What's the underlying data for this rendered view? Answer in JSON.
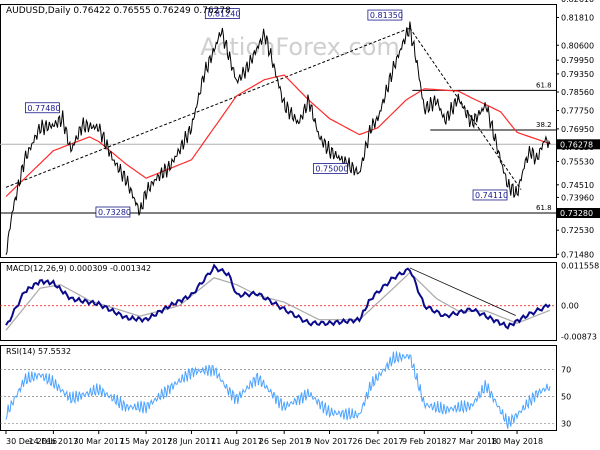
{
  "header": {
    "symbol_line": "AUDUSD,Daily  0.76422 0.76555 0.76249 0.76278",
    "watermark": "ActionForex.com"
  },
  "colors": {
    "price": "#000000",
    "ma": "#ff2a2a",
    "price_label": "#1a1a8c",
    "macd_main": "#0a0a8a",
    "macd_signal": "#a8a8a8",
    "rsi": "#4da3ff",
    "trend": "#000000",
    "level": "#000000",
    "dotted_zero": "#ff0000"
  },
  "chart_data": [
    {
      "id": "price",
      "type": "line",
      "ylim": [
        0.7136,
        0.824
      ],
      "yticks": [
        "0.82610",
        "0.81810",
        "0.80600",
        "0.79950",
        "0.79350",
        "0.78560",
        "0.77750",
        "0.76950",
        "0.76150",
        "0.75530",
        "0.74510",
        "0.73960",
        "0.73280",
        "0.72530",
        "0.71480"
      ],
      "current_price": "0.76278",
      "tag_labels": {
        "a": "0.77480",
        "b": "0.81240",
        "c": "0.81350",
        "d": "0.73280",
        "e": "0.75000",
        "f": "0.74110"
      },
      "fib_labels": [
        "61.8",
        "38.2",
        "61.8"
      ],
      "x_dates": [
        "30 Dec 2016",
        "14 Feb 2017",
        "30 Mar 2017",
        "15 May 2017",
        "28 Jun 2017",
        "11 Aug 2017",
        "26 Sep 2017",
        "9 Nov 2017",
        "26 Dec 2017",
        "9 Feb 2018",
        "27 Mar 2018",
        "10 May 2018"
      ],
      "anchors": [
        [
          "30 Dec 2016",
          0.715
        ],
        [
          "5 Jan 2017",
          0.733
        ],
        [
          "17 Jan 2017",
          0.756
        ],
        [
          "1 Feb 2017",
          0.77
        ],
        [
          "14 Feb 2017",
          0.771
        ],
        [
          "23 Feb 2017",
          0.774
        ],
        [
          "3 Mar 2017",
          0.76
        ],
        [
          "14 Mar 2017",
          0.771
        ],
        [
          "30 Mar 2017",
          0.77
        ],
        [
          "13 Apr 2017",
          0.756
        ],
        [
          "26 Apr 2017",
          0.747
        ],
        [
          "9 May 2017",
          0.733
        ],
        [
          "15 May 2017",
          0.742
        ],
        [
          "25 May 2017",
          0.748
        ],
        [
          "7 Jun 2017",
          0.753
        ],
        [
          "16 Jun 2017",
          0.76
        ],
        [
          "28 Jun 2017",
          0.77
        ],
        [
          "10 Jul 2017",
          0.793
        ],
        [
          "20 Jul 2017",
          0.804
        ],
        [
          "27 Jul 2017",
          0.8124
        ],
        [
          "3 Aug 2017",
          0.802
        ],
        [
          "11 Aug 2017",
          0.79
        ],
        [
          "21 Aug 2017",
          0.796
        ],
        [
          "31 Aug 2017",
          0.805
        ],
        [
          "7 Sep 2017",
          0.811
        ],
        [
          "14 Sep 2017",
          0.8
        ],
        [
          "26 Sep 2017",
          0.78
        ],
        [
          "10 Oct 2017",
          0.772
        ],
        [
          "20 Oct 2017",
          0.782
        ],
        [
          "30 Oct 2017",
          0.766
        ],
        [
          "9 Nov 2017",
          0.76
        ],
        [
          "21 Nov 2017",
          0.756
        ],
        [
          "8 Dec 2017",
          0.75
        ],
        [
          "19 Dec 2017",
          0.77
        ],
        [
          "26 Dec 2017",
          0.774
        ],
        [
          "10 Jan 2018",
          0.796
        ],
        [
          "22 Jan 2018",
          0.81
        ],
        [
          "26 Jan 2018",
          0.8135
        ],
        [
          "2 Feb 2018",
          0.798
        ],
        [
          "9 Feb 2018",
          0.778
        ],
        [
          "21 Feb 2018",
          0.782
        ],
        [
          "1 Mar 2018",
          0.773
        ],
        [
          "14 Mar 2018",
          0.783
        ],
        [
          "27 Mar 2018",
          0.772
        ],
        [
          "10 Apr 2018",
          0.78
        ],
        [
          "24 Apr 2018",
          0.756
        ],
        [
          "1 May 2018",
          0.745
        ],
        [
          "10 May 2018",
          0.7411
        ],
        [
          "18 May 2018",
          0.755
        ],
        [
          "23 May 2018",
          0.76
        ],
        [
          "29 May 2018",
          0.756
        ],
        [
          "6 Jun 2018",
          0.765
        ],
        [
          "11 Jun 2018",
          0.7628
        ]
      ],
      "ma_anchors": [
        [
          "30 Dec 2016",
          0.74
        ],
        [
          "14 Feb 2017",
          0.76
        ],
        [
          "21 Mar 2017",
          0.766
        ],
        [
          "30 Mar 2017",
          0.764
        ],
        [
          "26 Apr 2017",
          0.754
        ],
        [
          "15 May 2017",
          0.748
        ],
        [
          "28 Jun 2017",
          0.756
        ],
        [
          "20 Jul 2017",
          0.77
        ],
        [
          "11 Aug 2017",
          0.784
        ],
        [
          "7 Sep 2017",
          0.791
        ],
        [
          "26 Sep 2017",
          0.793
        ],
        [
          "20 Oct 2017",
          0.782
        ],
        [
          "9 Nov 2017",
          0.774
        ],
        [
          "8 Dec 2017",
          0.767
        ],
        [
          "26 Dec 2017",
          0.77
        ],
        [
          "22 Jan 2018",
          0.782
        ],
        [
          "9 Feb 2018",
          0.787
        ],
        [
          "14 Mar 2018",
          0.786
        ],
        [
          "27 Mar 2018",
          0.783
        ],
        [
          "24 Apr 2018",
          0.777
        ],
        [
          "10 May 2018",
          0.768
        ],
        [
          "11 Jun 2018",
          0.763
        ]
      ]
    },
    {
      "id": "macd",
      "type": "line",
      "title": "MACD(12,26,9) 0.000309 -0.001342",
      "ylim": [
        -0.0098,
        0.0125
      ],
      "yticks": [
        "0.011558",
        "0.00",
        "-0.00873"
      ],
      "series": [
        {
          "anchors": [
            [
              "30 Dec 2016",
              -0.006
            ],
            [
              "17 Jan 2017",
              0.004
            ],
            [
              "1 Feb 2017",
              0.007
            ],
            [
              "14 Feb 2017",
              0.0065
            ],
            [
              "3 Mar 2017",
              0.002
            ],
            [
              "30 Mar 2017",
              0.0005
            ],
            [
              "26 Apr 2017",
              -0.0035
            ],
            [
              "15 May 2017",
              -0.004
            ],
            [
              "7 Jun 2017",
              0.0
            ],
            [
              "28 Jun 2017",
              0.003
            ],
            [
              "20 Jul 2017",
              0.011
            ],
            [
              "3 Aug 2017",
              0.009
            ],
            [
              "11 Aug 2017",
              0.003
            ],
            [
              "31 Aug 2017",
              0.0035
            ],
            [
              "26 Sep 2017",
              -0.001
            ],
            [
              "20 Oct 2017",
              -0.005
            ],
            [
              "9 Nov 2017",
              -0.005
            ],
            [
              "8 Dec 2017",
              -0.004
            ],
            [
              "19 Dec 2017",
              0.002
            ],
            [
              "10 Jan 2018",
              0.008
            ],
            [
              "26 Jan 2018",
              0.0105
            ],
            [
              "9 Feb 2018",
              0.0
            ],
            [
              "1 Mar 2018",
              -0.003
            ],
            [
              "27 Mar 2018",
              -0.001
            ],
            [
              "10 Apr 2018",
              -0.003
            ],
            [
              "1 May 2018",
              -0.006
            ],
            [
              "18 May 2018",
              -0.003
            ],
            [
              "11 Jun 2018",
              0.0003
            ]
          ]
        },
        {
          "anchors": [
            [
              "30 Dec 2016",
              -0.007
            ],
            [
              "1 Feb 2017",
              0.005
            ],
            [
              "21 Feb 2017",
              0.006
            ],
            [
              "21 Mar 2017",
              0.0015
            ],
            [
              "9 May 2017",
              -0.003
            ],
            [
              "16 Jun 2017",
              0.0
            ],
            [
              "20 Jul 2017",
              0.008
            ],
            [
              "11 Aug 2017",
              0.006
            ],
            [
              "31 Aug 2017",
              0.003
            ],
            [
              "26 Sep 2017",
              0.001
            ],
            [
              "30 Oct 2017",
              -0.004
            ],
            [
              "8 Dec 2017",
              -0.004
            ],
            [
              "10 Jan 2018",
              0.005
            ],
            [
              "26 Jan 2018",
              0.0095
            ],
            [
              "21 Feb 2018",
              0.002
            ],
            [
              "14 Mar 2018",
              -0.0015
            ],
            [
              "10 Apr 2018",
              -0.0015
            ],
            [
              "10 May 2018",
              -0.005
            ],
            [
              "11 Jun 2018",
              -0.0013
            ]
          ]
        }
      ]
    },
    {
      "id": "rsi",
      "type": "line",
      "title": "RSI(14) 57.5532",
      "ylim": [
        25,
        88
      ],
      "yticks": [
        "70",
        "50",
        "30"
      ],
      "anchors": [
        [
          "30 Dec 2016",
          36
        ],
        [
          "17 Jan 2017",
          62
        ],
        [
          "1 Feb 2017",
          66
        ],
        [
          "14 Feb 2017",
          60
        ],
        [
          "3 Mar 2017",
          48
        ],
        [
          "30 Mar 2017",
          55
        ],
        [
          "26 Apr 2017",
          42
        ],
        [
          "15 May 2017",
          42
        ],
        [
          "7 Jun 2017",
          56
        ],
        [
          "28 Jun 2017",
          68
        ],
        [
          "20 Jul 2017",
          70
        ],
        [
          "3 Aug 2017",
          54
        ],
        [
          "11 Aug 2017",
          48
        ],
        [
          "31 Aug 2017",
          64
        ],
        [
          "26 Sep 2017",
          42
        ],
        [
          "20 Oct 2017",
          52
        ],
        [
          "9 Nov 2017",
          38
        ],
        [
          "8 Dec 2017",
          36
        ],
        [
          "19 Dec 2017",
          58
        ],
        [
          "10 Jan 2018",
          78
        ],
        [
          "26 Jan 2018",
          80
        ],
        [
          "9 Feb 2018",
          44
        ],
        [
          "1 Mar 2018",
          40
        ],
        [
          "27 Mar 2018",
          43
        ],
        [
          "10 Apr 2018",
          58
        ],
        [
          "1 May 2018",
          30
        ],
        [
          "10 May 2018",
          36
        ],
        [
          "29 May 2018",
          52
        ],
        [
          "11 Jun 2018",
          57.5
        ]
      ]
    }
  ]
}
